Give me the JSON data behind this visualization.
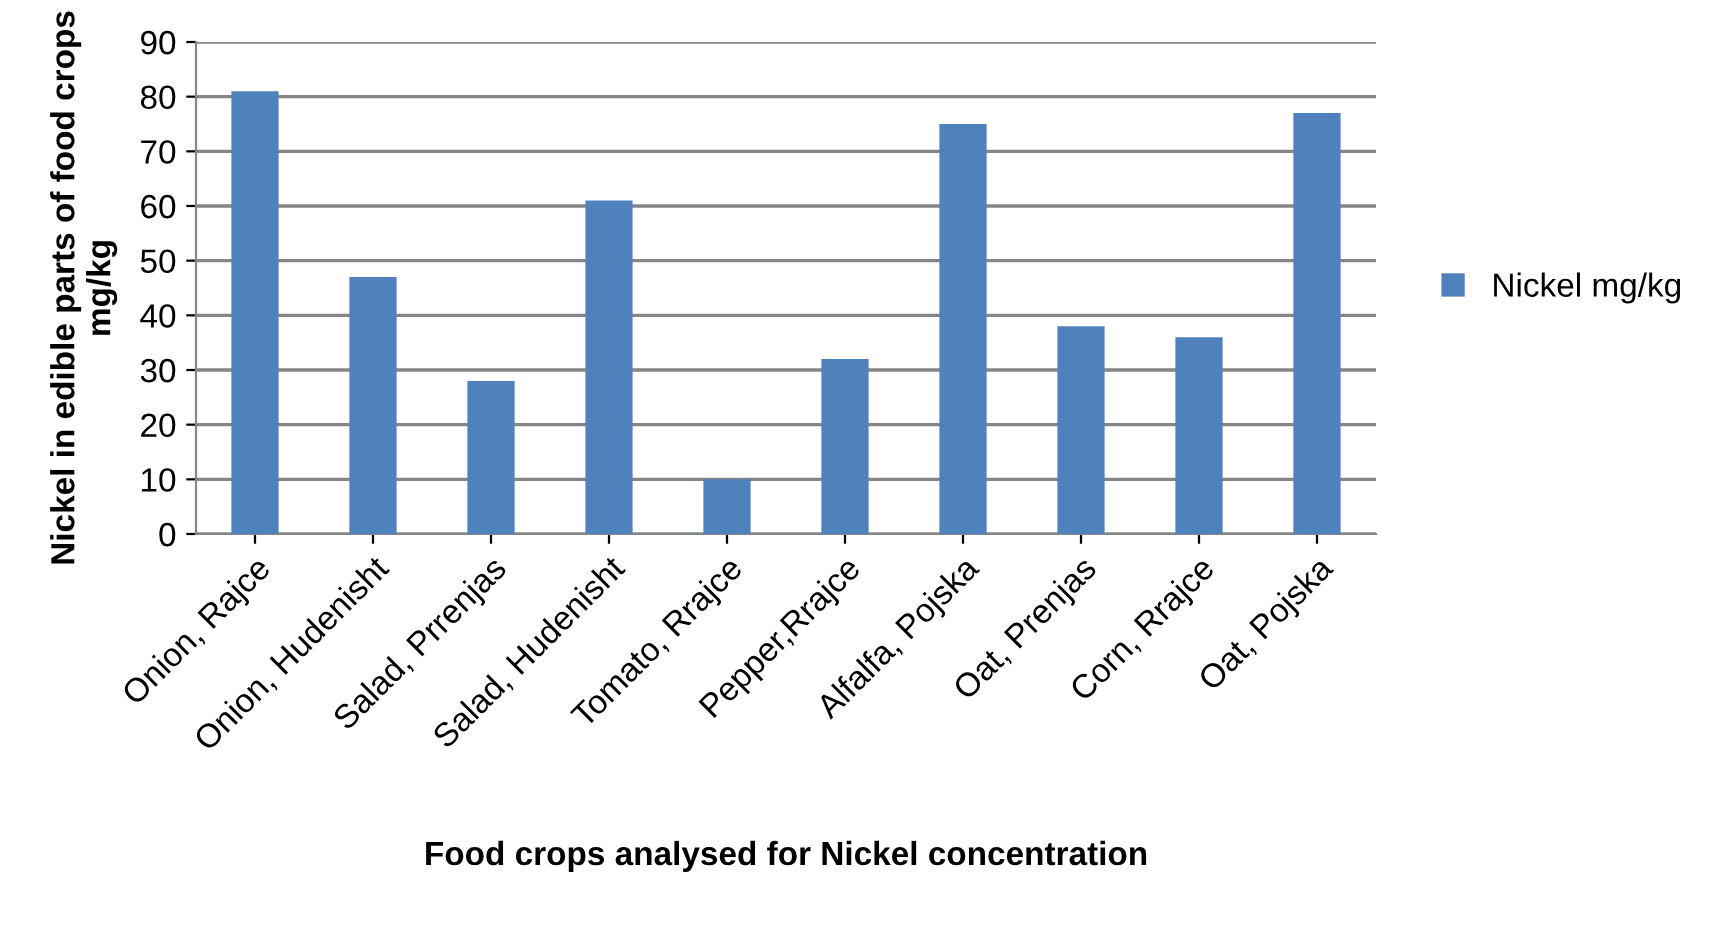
{
  "chart_data": {
    "type": "bar",
    "xlabel": "Food crops analysed for Nickel concentration",
    "ylabel": "Nickel in edible parts of food crops\nmg/kg",
    "categories": [
      "Onion, Rajce",
      "Onion, Hudenisht",
      "Salad, Prrenjas",
      "Salad, Hudenisht",
      "Tomato, Rrajce",
      "Pepper,Rrajce",
      "Alfalfa, Pojska",
      "Oat, Prenjas",
      "Corn, Rrajce",
      "Oat, Pojska"
    ],
    "series": [
      {
        "name": "Nickel mg/kg",
        "color": "#4f81bd",
        "values": [
          81,
          47,
          28,
          61,
          10,
          32,
          75,
          38,
          36,
          77
        ]
      }
    ],
    "ylim": [
      0,
      90
    ],
    "yticks": [
      0,
      10,
      20,
      30,
      40,
      50,
      60,
      70,
      80,
      90
    ],
    "grid": "y",
    "legend": "right"
  }
}
